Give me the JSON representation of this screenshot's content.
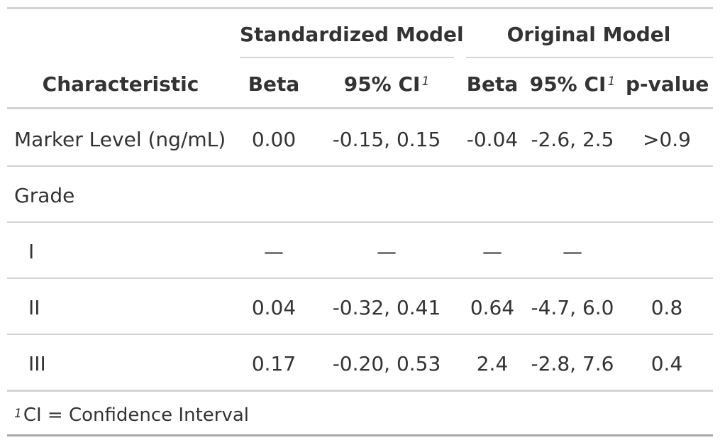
{
  "table": {
    "spanners": {
      "standardized": "Standardized Model",
      "original": "Original Model"
    },
    "columns": {
      "characteristic": "Characteristic",
      "std_beta": "Beta",
      "std_ci": "95% CI",
      "orig_beta": "Beta",
      "orig_ci": "95% CI",
      "p_value": "p-value",
      "footnote_mark": "1"
    },
    "rows": [
      {
        "label": "Marker Level (ng/mL)",
        "std_beta": "0.00",
        "std_ci": "-0.15, 0.15",
        "orig_beta": "-0.04",
        "orig_ci": "-2.6, 2.5",
        "p_value": ">0.9"
      },
      {
        "label": "Grade",
        "std_beta": "",
        "std_ci": "",
        "orig_beta": "",
        "orig_ci": "",
        "p_value": ""
      },
      {
        "label": "I",
        "std_beta": "—",
        "std_ci": "—",
        "orig_beta": "—",
        "orig_ci": "—",
        "p_value": ""
      },
      {
        "label": "II",
        "std_beta": "0.04",
        "std_ci": "-0.32, 0.41",
        "orig_beta": "0.64",
        "orig_ci": "-4.7, 6.0",
        "p_value": "0.8"
      },
      {
        "label": "III",
        "std_beta": "0.17",
        "std_ci": "-0.20, 0.53",
        "orig_beta": "2.4",
        "orig_ci": "-2.8, 7.6",
        "p_value": "0.4"
      }
    ],
    "footnote": {
      "mark": "1",
      "text": "CI = Confidence Interval"
    }
  }
}
